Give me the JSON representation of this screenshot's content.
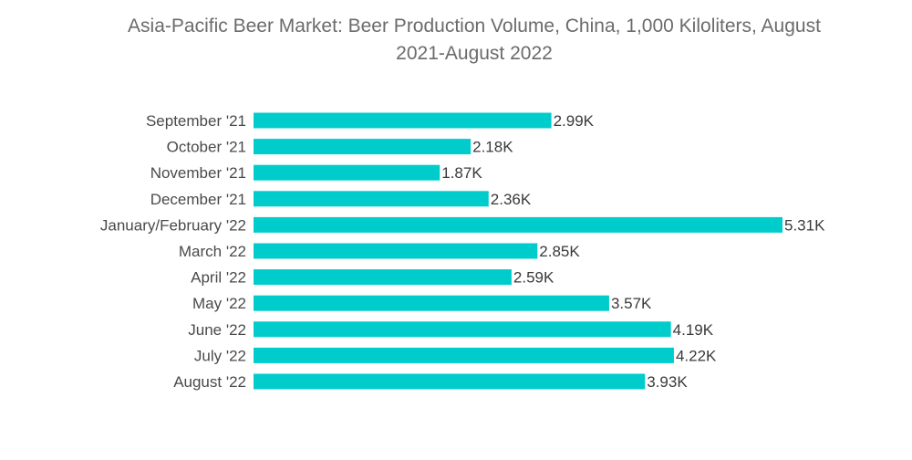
{
  "chart_data": {
    "type": "bar",
    "orientation": "horizontal",
    "title_line1": "Asia-Pacific Beer Market: Beer Production Volume, China, 1,000 Kiloliters, August",
    "title_line2": "2021-August 2022",
    "categories": [
      "September '21",
      "October '21",
      "November '21",
      "December '21",
      "January/February '22",
      "March '22",
      "April '22",
      "May '22",
      "June '22",
      "July '22",
      "August '22"
    ],
    "values": [
      2.99,
      2.18,
      1.87,
      2.36,
      5.31,
      2.85,
      2.59,
      3.57,
      4.19,
      4.22,
      3.93
    ],
    "value_labels": [
      "2.99K",
      "2.18K",
      "1.87K",
      "2.36K",
      "5.31K",
      "2.85K",
      "2.59K",
      "3.57K",
      "4.19K",
      "4.22K",
      "3.93K"
    ],
    "xlim": [
      0,
      5.31
    ],
    "grid": false,
    "legend": "none",
    "bar_color": "#00cccc"
  }
}
